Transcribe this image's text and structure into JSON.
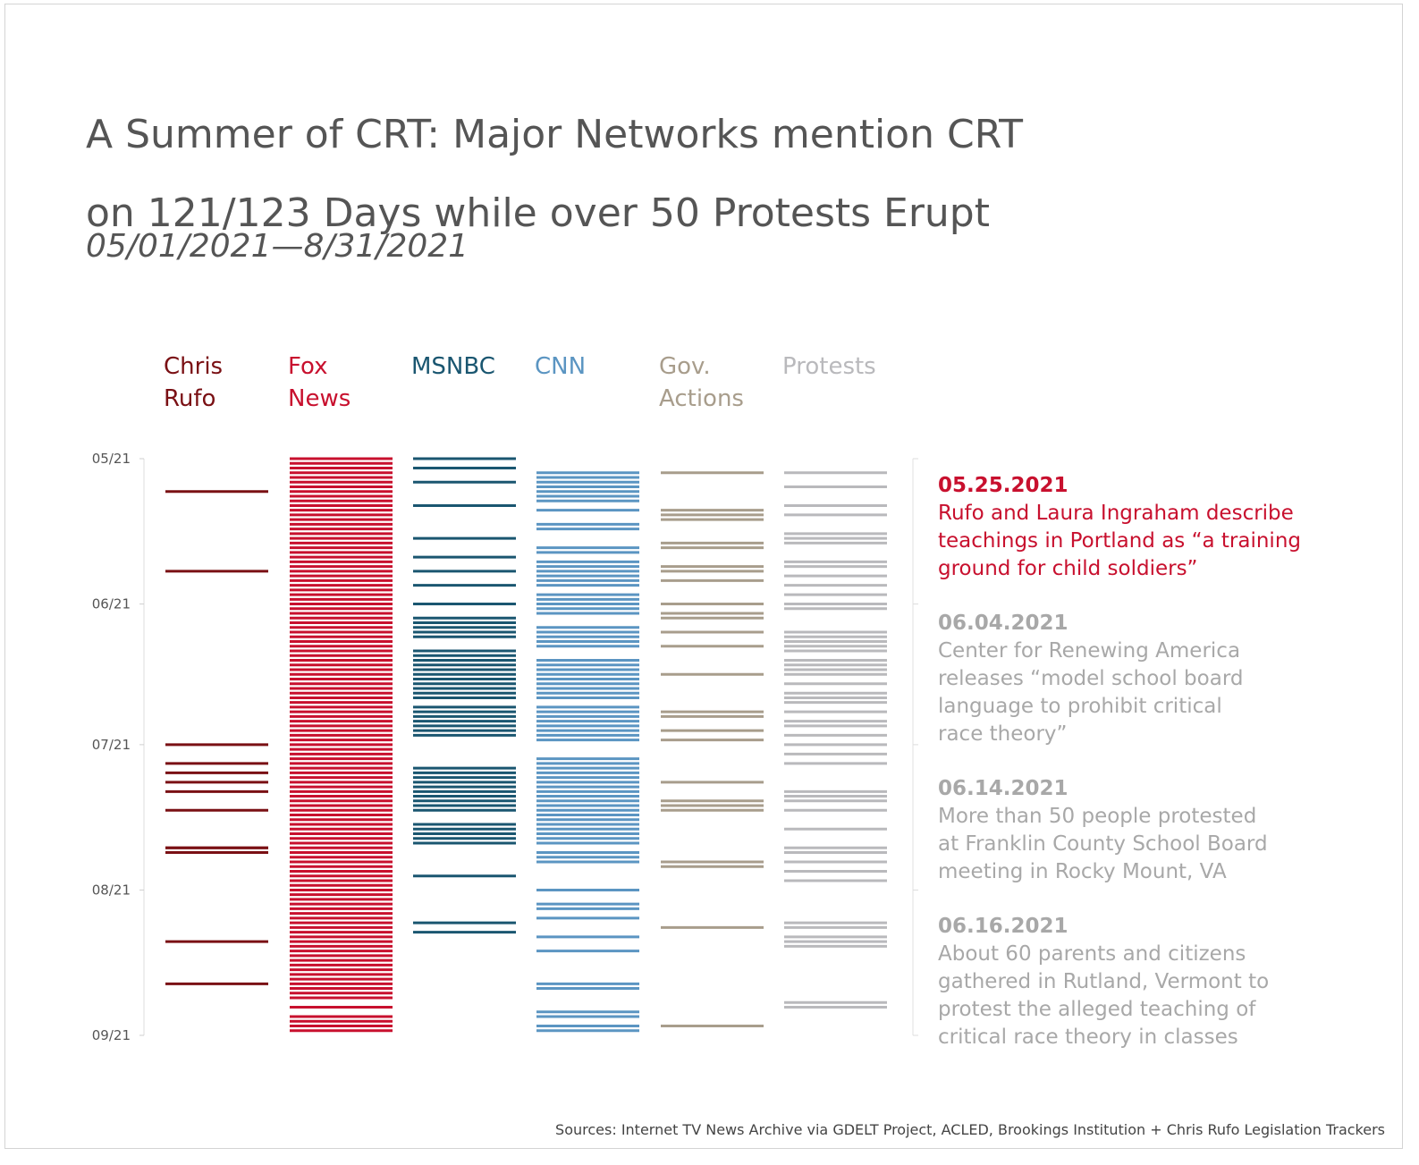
{
  "title": {
    "line1": "A Summer of CRT: Major Networks mention CRT",
    "line2": "on 121/123 Days while over 50 Protests Erupt"
  },
  "subtitle": "05/01/2021—8/31/2021",
  "sources": "Sources: Internet TV News Archive via GDELT Project, ACLED, Brookings Institution + Chris Rufo Legislation Trackers",
  "chart_data": {
    "type": "timeline",
    "start_date": "2021-05-01",
    "end_date": "2021-09-01",
    "y_ticks": [
      {
        "label": "05/21",
        "date": "2021-05-01"
      },
      {
        "label": "06/21",
        "date": "2021-06-01"
      },
      {
        "label": "07/21",
        "date": "2021-07-01"
      },
      {
        "label": "08/21",
        "date": "2021-08-01"
      },
      {
        "label": "09/21",
        "date": "2021-09-01"
      }
    ],
    "series": [
      {
        "name": "Chris Rufo",
        "label_lines": [
          "Chris",
          "Rufo"
        ],
        "color": "#7a1014",
        "dates": [
          "2021-05-08",
          "2021-05-25",
          "2021-07-23",
          "2021-07-24",
          "2021-07-01",
          "2021-07-05",
          "2021-07-07",
          "2021-07-09",
          "2021-07-11",
          "2021-07-15",
          "2021-07-23",
          "2021-08-12",
          "2021-08-21"
        ]
      },
      {
        "name": "Fox News",
        "label_lines": [
          "Fox",
          "News"
        ],
        "color": "#c8102e",
        "dates": [
          "2021-05-01",
          "2021-05-02",
          "2021-05-03",
          "2021-05-04",
          "2021-05-05",
          "2021-05-06",
          "2021-05-07",
          "2021-05-08",
          "2021-05-09",
          "2021-05-10",
          "2021-05-11",
          "2021-05-12",
          "2021-05-13",
          "2021-05-14",
          "2021-05-15",
          "2021-05-16",
          "2021-05-17",
          "2021-05-18",
          "2021-05-19",
          "2021-05-20",
          "2021-05-21",
          "2021-05-22",
          "2021-05-23",
          "2021-05-24",
          "2021-05-25",
          "2021-05-26",
          "2021-05-27",
          "2021-05-28",
          "2021-05-29",
          "2021-05-30",
          "2021-05-31",
          "2021-06-01",
          "2021-06-02",
          "2021-06-03",
          "2021-06-04",
          "2021-06-05",
          "2021-06-06",
          "2021-06-07",
          "2021-06-08",
          "2021-06-09",
          "2021-06-10",
          "2021-06-11",
          "2021-06-12",
          "2021-06-13",
          "2021-06-14",
          "2021-06-15",
          "2021-06-16",
          "2021-06-17",
          "2021-06-18",
          "2021-06-19",
          "2021-06-20",
          "2021-06-21",
          "2021-06-22",
          "2021-06-23",
          "2021-06-24",
          "2021-06-25",
          "2021-06-26",
          "2021-06-27",
          "2021-06-28",
          "2021-06-29",
          "2021-06-30",
          "2021-07-01",
          "2021-07-02",
          "2021-07-03",
          "2021-07-04",
          "2021-07-05",
          "2021-07-06",
          "2021-07-07",
          "2021-07-08",
          "2021-07-09",
          "2021-07-10",
          "2021-07-11",
          "2021-07-12",
          "2021-07-13",
          "2021-07-14",
          "2021-07-15",
          "2021-07-16",
          "2021-07-17",
          "2021-07-18",
          "2021-07-19",
          "2021-07-20",
          "2021-07-21",
          "2021-07-22",
          "2021-07-23",
          "2021-07-24",
          "2021-07-25",
          "2021-07-26",
          "2021-07-27",
          "2021-07-28",
          "2021-07-29",
          "2021-07-30",
          "2021-07-31",
          "2021-08-01",
          "2021-08-02",
          "2021-08-03",
          "2021-08-04",
          "2021-08-05",
          "2021-08-06",
          "2021-08-07",
          "2021-08-08",
          "2021-08-09",
          "2021-08-10",
          "2021-08-11",
          "2021-08-12",
          "2021-08-13",
          "2021-08-14",
          "2021-08-15",
          "2021-08-16",
          "2021-08-17",
          "2021-08-18",
          "2021-08-19",
          "2021-08-20",
          "2021-08-21",
          "2021-08-22",
          "2021-08-23",
          "2021-08-24",
          "2021-08-26",
          "2021-08-28",
          "2021-08-29",
          "2021-08-30",
          "2021-08-31"
        ]
      },
      {
        "name": "MSNBC",
        "label_lines": [
          "MSNBC"
        ],
        "color": "#1a5670",
        "dates": [
          "2021-05-01",
          "2021-05-03",
          "2021-05-06",
          "2021-05-11",
          "2021-05-18",
          "2021-05-22",
          "2021-05-25",
          "2021-05-28",
          "2021-06-01",
          "2021-06-04",
          "2021-06-05",
          "2021-06-06",
          "2021-06-07",
          "2021-06-08",
          "2021-06-11",
          "2021-06-12",
          "2021-06-13",
          "2021-06-14",
          "2021-06-15",
          "2021-06-16",
          "2021-06-17",
          "2021-06-18",
          "2021-06-19",
          "2021-06-20",
          "2021-06-21",
          "2021-06-23",
          "2021-06-24",
          "2021-06-25",
          "2021-06-26",
          "2021-06-27",
          "2021-06-28",
          "2021-06-29",
          "2021-07-06",
          "2021-07-07",
          "2021-07-08",
          "2021-07-09",
          "2021-07-10",
          "2021-07-11",
          "2021-07-12",
          "2021-07-13",
          "2021-07-14",
          "2021-07-15",
          "2021-07-18",
          "2021-07-19",
          "2021-07-20",
          "2021-07-21",
          "2021-07-22",
          "2021-07-29",
          "2021-08-08",
          "2021-08-10"
        ]
      },
      {
        "name": "CNN",
        "label_lines": [
          "CNN"
        ],
        "color": "#5b95c2",
        "dates": [
          "2021-05-04",
          "2021-05-05",
          "2021-05-06",
          "2021-05-07",
          "2021-05-08",
          "2021-05-09",
          "2021-05-10",
          "2021-05-12",
          "2021-05-15",
          "2021-05-16",
          "2021-05-20",
          "2021-05-21",
          "2021-05-23",
          "2021-05-24",
          "2021-05-25",
          "2021-05-26",
          "2021-05-27",
          "2021-05-28",
          "2021-05-30",
          "2021-05-31",
          "2021-06-01",
          "2021-06-02",
          "2021-06-03",
          "2021-06-06",
          "2021-06-07",
          "2021-06-08",
          "2021-06-09",
          "2021-06-10",
          "2021-06-13",
          "2021-06-14",
          "2021-06-15",
          "2021-06-16",
          "2021-06-17",
          "2021-06-18",
          "2021-06-19",
          "2021-06-20",
          "2021-06-21",
          "2021-06-23",
          "2021-06-24",
          "2021-06-25",
          "2021-06-26",
          "2021-06-27",
          "2021-06-28",
          "2021-06-29",
          "2021-06-30",
          "2021-07-04",
          "2021-07-05",
          "2021-07-06",
          "2021-07-07",
          "2021-07-08",
          "2021-07-09",
          "2021-07-10",
          "2021-07-11",
          "2021-07-12",
          "2021-07-13",
          "2021-07-14",
          "2021-07-15",
          "2021-07-16",
          "2021-07-17",
          "2021-07-18",
          "2021-07-19",
          "2021-07-20",
          "2021-07-21",
          "2021-07-22",
          "2021-07-24",
          "2021-07-25",
          "2021-07-26",
          "2021-08-01",
          "2021-08-04",
          "2021-08-05",
          "2021-08-07",
          "2021-08-11",
          "2021-08-14",
          "2021-08-21",
          "2021-08-22",
          "2021-08-27",
          "2021-08-28",
          "2021-08-30",
          "2021-08-31"
        ]
      },
      {
        "name": "Gov. Actions",
        "label_lines": [
          "Gov.",
          "Actions"
        ],
        "color": "#a89d8c",
        "dates": [
          "2021-05-04",
          "2021-05-12",
          "2021-05-13",
          "2021-05-14",
          "2021-05-19",
          "2021-05-20",
          "2021-05-24",
          "2021-05-25",
          "2021-05-27",
          "2021-06-01",
          "2021-06-03",
          "2021-06-04",
          "2021-06-07",
          "2021-06-10",
          "2021-06-16",
          "2021-06-24",
          "2021-06-25",
          "2021-06-28",
          "2021-06-30",
          "2021-07-09",
          "2021-07-13",
          "2021-07-14",
          "2021-07-15",
          "2021-07-26",
          "2021-07-27",
          "2021-08-09",
          "2021-08-30"
        ]
      },
      {
        "name": "Protests",
        "label_lines": [
          "Protests"
        ],
        "color": "#b9b9bc",
        "dates": [
          "2021-05-04",
          "2021-05-07",
          "2021-05-11",
          "2021-05-13",
          "2021-05-17",
          "2021-05-18",
          "2021-05-19",
          "2021-05-23",
          "2021-05-24",
          "2021-05-26",
          "2021-05-28",
          "2021-05-30",
          "2021-06-01",
          "2021-06-02",
          "2021-06-07",
          "2021-06-08",
          "2021-06-09",
          "2021-06-10",
          "2021-06-11",
          "2021-06-13",
          "2021-06-14",
          "2021-06-15",
          "2021-06-16",
          "2021-06-18",
          "2021-06-20",
          "2021-06-21",
          "2021-06-22",
          "2021-06-24",
          "2021-06-26",
          "2021-06-27",
          "2021-06-29",
          "2021-07-01",
          "2021-07-03",
          "2021-07-05",
          "2021-07-11",
          "2021-07-12",
          "2021-07-13",
          "2021-07-15",
          "2021-07-19",
          "2021-07-23",
          "2021-07-24",
          "2021-07-26",
          "2021-07-28",
          "2021-07-30",
          "2021-08-08",
          "2021-08-09",
          "2021-08-11",
          "2021-08-12",
          "2021-08-13",
          "2021-08-25",
          "2021-08-26"
        ]
      }
    ],
    "annotations": [
      {
        "date_label": "05.25.2021",
        "lines": [
          "Rufo and Laura Ingraham describe",
          "teachings in Portland as “a training",
          "ground for child soldiers”"
        ],
        "color": "#c8102e"
      },
      {
        "date_label": "06.04.2021",
        "lines": [
          "Center for Renewing America",
          "releases “model school board",
          "language to prohibit critical",
          "race theory”"
        ],
        "color": "#a8a8a8"
      },
      {
        "date_label": "06.14.2021",
        "lines": [
          "More than 50 people protested",
          "at Franklin County School Board",
          "meeting in Rocky Mount, VA"
        ],
        "color": "#a8a8a8"
      },
      {
        "date_label": "06.16.2021",
        "lines": [
          "About 60 parents and citizens",
          "gathered in Rutland, Vermont to",
          "protest the alleged teaching of",
          "critical race theory in classes"
        ],
        "color": "#a8a8a8"
      }
    ],
    "grid": false
  }
}
